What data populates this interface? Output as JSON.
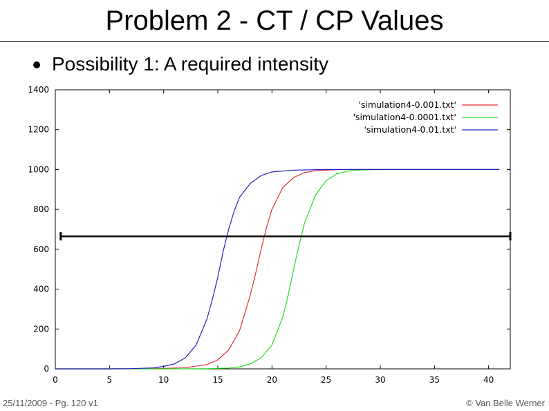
{
  "slide": {
    "title": "Problem 2 - CT / CP Values",
    "bullet": "Possibility 1: A required intensity",
    "footer_left": "25/11/2009 - Pg. 120 v1",
    "footer_right": "© Van Belle Werner"
  },
  "chart_data": {
    "type": "line",
    "title": "",
    "xlabel": "",
    "ylabel": "",
    "xlim": [
      0,
      42
    ],
    "ylim": [
      0,
      1400
    ],
    "xticks": [
      0,
      5,
      10,
      15,
      20,
      25,
      30,
      35,
      40
    ],
    "yticks": [
      0,
      200,
      400,
      600,
      800,
      1000,
      1200,
      1400
    ],
    "grid": false,
    "legend_position": "top-right",
    "series": [
      {
        "name": "'simulation4-0.001.txt'",
        "color": "#e03030",
        "x": [
          0,
          5,
          10,
          12,
          14,
          15,
          16,
          17,
          18,
          18.5,
          19,
          19.5,
          20,
          21,
          22,
          23,
          24,
          26,
          28,
          30,
          35,
          41
        ],
        "y": [
          0,
          0,
          2,
          6,
          22,
          45,
          95,
          190,
          370,
          480,
          600,
          710,
          800,
          910,
          960,
          985,
          994,
          999,
          1000,
          1000,
          1000,
          1000
        ]
      },
      {
        "name": "'simulation4-0.0001.txt'",
        "color": "#22dd22",
        "x": [
          0,
          5,
          10,
          14,
          16,
          17,
          18,
          19,
          20,
          21,
          21.5,
          22,
          22.5,
          23,
          24,
          25,
          26,
          27,
          28,
          30,
          35,
          41
        ],
        "y": [
          0,
          0,
          0,
          1,
          4,
          10,
          25,
          55,
          120,
          260,
          370,
          500,
          620,
          730,
          870,
          945,
          978,
          992,
          997,
          1000,
          1000,
          1000
        ]
      },
      {
        "name": "'simulation4-0.01.txt'",
        "color": "#2020bb",
        "x": [
          0,
          5,
          7,
          9,
          10,
          11,
          12,
          13,
          14,
          14.5,
          15,
          15.5,
          16,
          16.5,
          17,
          18,
          19,
          20,
          22,
          25,
          30,
          41
        ],
        "y": [
          0,
          0,
          1,
          5,
          12,
          25,
          55,
          120,
          250,
          350,
          460,
          590,
          700,
          790,
          860,
          930,
          970,
          988,
          997,
          1000,
          1000,
          1000
        ]
      }
    ],
    "threshold_line": {
      "y": 665,
      "x": [
        0.5,
        42
      ]
    }
  }
}
